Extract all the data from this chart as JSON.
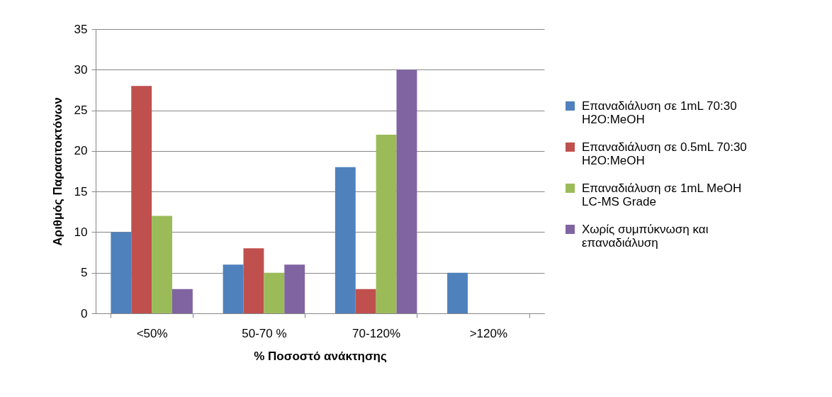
{
  "chart_data": {
    "type": "bar",
    "xlabel": "% Ποσοστό ανάκτησης",
    "ylabel": "Αριθμός Παρασιτοκτόνων",
    "categories": [
      "<50%",
      "50-70 %",
      "70-120%",
      ">120%"
    ],
    "series": [
      {
        "name": "Επαναδιάλυση σε 1mL 70:30 H2O:MeOH",
        "color": "#4f81bd",
        "values": [
          10,
          6,
          18,
          5
        ]
      },
      {
        "name": "Επαναδιάλυση σε 0.5mL 70:30 H2O:MeOH",
        "color": "#c0504d",
        "values": [
          28,
          8,
          3,
          0
        ]
      },
      {
        "name": "Επαναδιάλυση σε 1mL MeOH LC-MS Grade",
        "color": "#9bbb59",
        "values": [
          12,
          5,
          22,
          0
        ]
      },
      {
        "name": "Χωρίς συμπύκνωση και επαναδιάλυση",
        "color": "#8064a2",
        "values": [
          3,
          6,
          30,
          0
        ]
      }
    ],
    "ylim": [
      0,
      35
    ],
    "yticks": [
      0,
      5,
      10,
      15,
      20,
      25,
      30,
      35
    ],
    "grid": "y",
    "legend": "right"
  }
}
